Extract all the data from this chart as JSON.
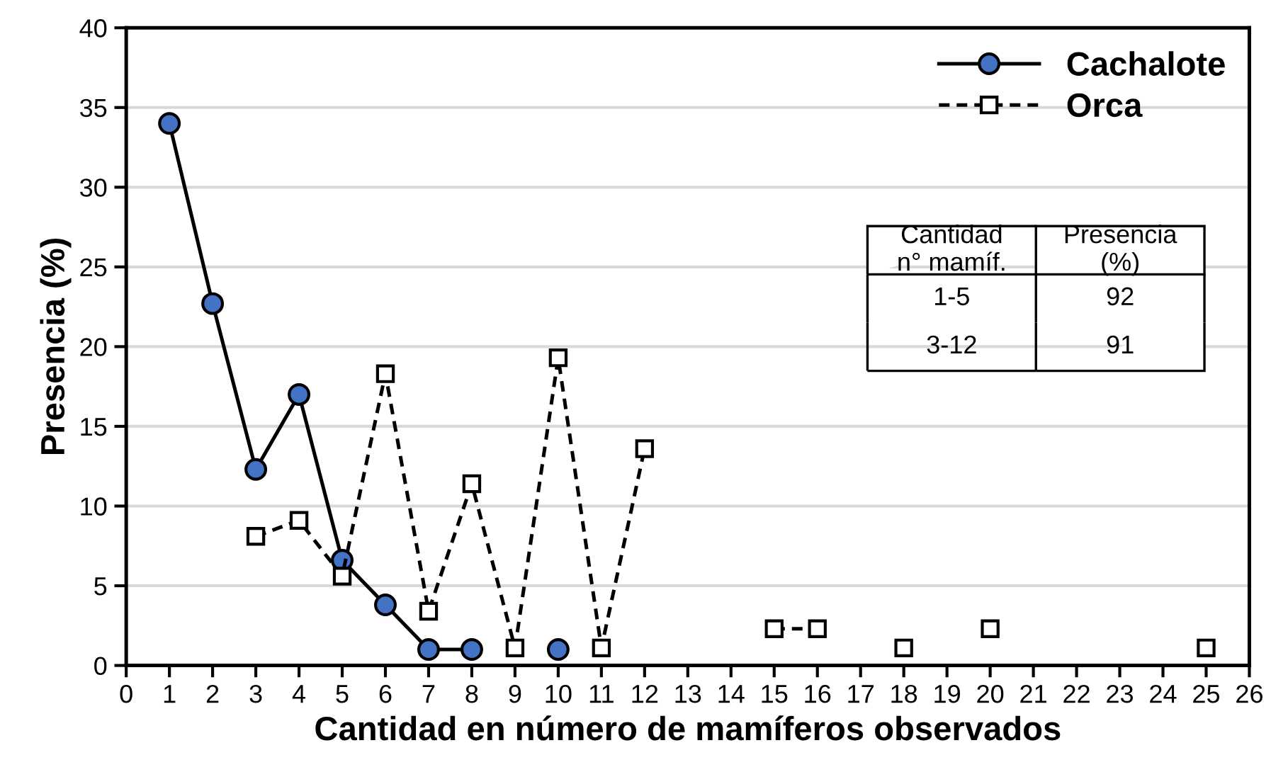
{
  "chart_data": {
    "type": "line",
    "xlabel": "Cantidad en número de mamíferos observados",
    "ylabel": "Presencia (%)",
    "xlim": [
      0,
      26
    ],
    "xticks": [
      0,
      1,
      2,
      3,
      4,
      5,
      6,
      7,
      8,
      9,
      10,
      11,
      12,
      13,
      14,
      15,
      16,
      17,
      18,
      19,
      20,
      21,
      22,
      23,
      24,
      25,
      26
    ],
    "ylim": [
      0,
      40
    ],
    "yticks": [
      0,
      5,
      10,
      15,
      20,
      25,
      30,
      35,
      40
    ],
    "grid": "y",
    "legend": "top right",
    "series": [
      {
        "name": "Cachalote",
        "color": "#4472c4",
        "marker": "circle",
        "line_style": "solid",
        "x": [
          1,
          2,
          3,
          4,
          5,
          6,
          7,
          8,
          9,
          10
        ],
        "values": [
          34,
          22.7,
          12.3,
          17,
          6.6,
          3.8,
          1.0,
          1.0,
          null,
          1.0
        ]
      },
      {
        "name": "Orca",
        "color": "#ffffff",
        "marker": "square",
        "line_style": "dashed",
        "x": [
          3,
          4,
          5,
          6,
          7,
          8,
          9,
          10,
          11,
          12,
          13,
          14,
          15,
          16,
          17,
          18,
          19,
          20,
          21,
          22,
          23,
          24,
          25
        ],
        "values": [
          8.1,
          9.1,
          5.6,
          18.3,
          3.4,
          11.4,
          1.1,
          19.3,
          1.1,
          13.6,
          null,
          null,
          2.3,
          2.3,
          null,
          1.1,
          null,
          2.3,
          null,
          null,
          null,
          null,
          1.1
        ]
      }
    ],
    "annotations": [
      [
        "Cantidad\nn° mamíf.",
        "Presencia\n(%)"
      ],
      [
        "1-5",
        "92"
      ],
      [
        "3-12",
        "91"
      ]
    ]
  }
}
